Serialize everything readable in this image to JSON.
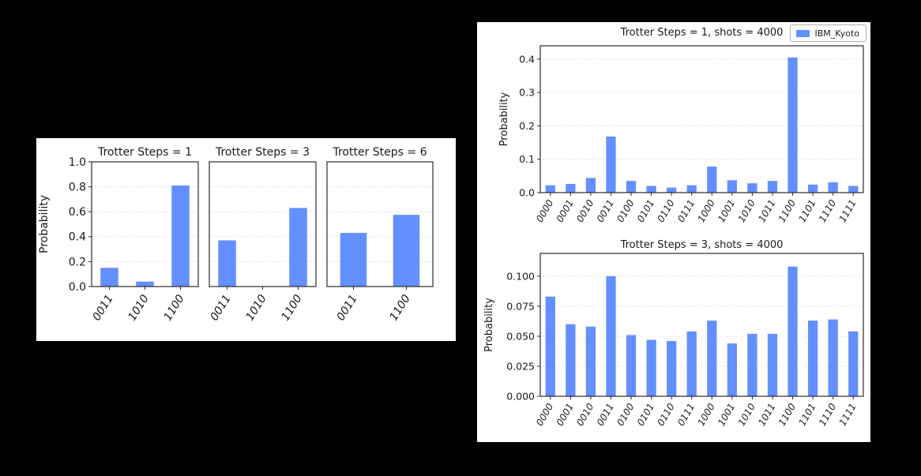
{
  "page": {
    "background_color": "#000000",
    "panel_color": "#ffffff"
  },
  "chart_data": [
    {
      "id": "trotter-steps-comparison",
      "type": "bar",
      "ylabel": "Probability",
      "bar_color": "#648FFF",
      "grid": "dotted-horizontal",
      "ylim": [
        0,
        1.0
      ],
      "ytick_values": [
        0.0,
        0.2,
        0.4,
        0.6,
        0.8,
        1.0
      ],
      "ytick_labels": [
        "0.0",
        "0.2",
        "0.4",
        "0.6",
        "0.8",
        "1.0"
      ],
      "subplots": [
        {
          "title": "Trotter Steps = 1",
          "categories": [
            "0011",
            "1010",
            "1100"
          ],
          "values": [
            0.15,
            0.04,
            0.81
          ]
        },
        {
          "title": "Trotter Steps = 3",
          "categories": [
            "0011",
            "1010",
            "1100"
          ],
          "values": [
            0.37,
            0.0,
            0.63
          ]
        },
        {
          "title": "Trotter Steps = 6",
          "categories": [
            "0011",
            "1100"
          ],
          "values": [
            0.43,
            0.575
          ]
        }
      ]
    },
    {
      "id": "ibm-kyoto-results",
      "type": "bar",
      "ylabel": "Probability",
      "bar_color": "#648FFF",
      "grid": "dotted-horizontal",
      "legend": {
        "label": "IBM_Kyoto",
        "color": "#648FFF",
        "position": "upper-right"
      },
      "subplots": [
        {
          "title": "Trotter Steps = 1, shots = 4000",
          "ylim": [
            0,
            0.44
          ],
          "ytick_values": [
            0.0,
            0.1,
            0.2,
            0.3,
            0.4
          ],
          "ytick_labels": [
            "0.0",
            "0.1",
            "0.2",
            "0.3",
            "0.4"
          ],
          "categories": [
            "0000",
            "0001",
            "0010",
            "0011",
            "0100",
            "0101",
            "0110",
            "0111",
            "1000",
            "1001",
            "1010",
            "1011",
            "1100",
            "1101",
            "1110",
            "1111"
          ],
          "values": [
            0.022,
            0.026,
            0.044,
            0.168,
            0.035,
            0.02,
            0.015,
            0.022,
            0.078,
            0.037,
            0.028,
            0.035,
            0.405,
            0.024,
            0.031,
            0.02
          ]
        },
        {
          "title": "Trotter Steps = 3, shots = 4000",
          "ylim": [
            0,
            0.119
          ],
          "ytick_values": [
            0.0,
            0.025,
            0.05,
            0.075,
            0.1
          ],
          "ytick_labels": [
            "0.000",
            "0.025",
            "0.050",
            "0.075",
            "0.100"
          ],
          "categories": [
            "0000",
            "0001",
            "0010",
            "0011",
            "0100",
            "0101",
            "0110",
            "0111",
            "1000",
            "1001",
            "1010",
            "1011",
            "1100",
            "1101",
            "1110",
            "1111"
          ],
          "values": [
            0.083,
            0.06,
            0.058,
            0.1,
            0.051,
            0.047,
            0.046,
            0.054,
            0.063,
            0.044,
            0.052,
            0.052,
            0.108,
            0.063,
            0.064,
            0.054
          ]
        }
      ]
    }
  ]
}
